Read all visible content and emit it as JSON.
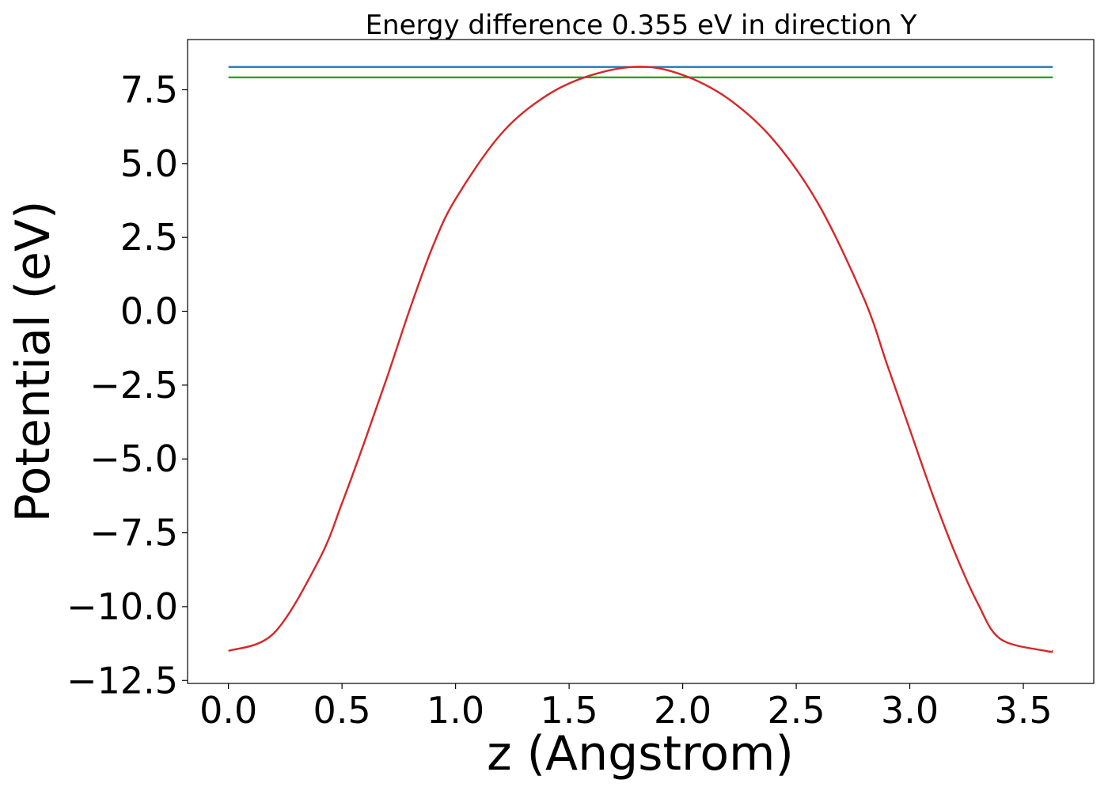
{
  "chart_data": {
    "type": "line",
    "title": "Energy difference 0.355 eV in direction Y",
    "xlabel": "z (Angstrom)",
    "ylabel": "Potential (eV)",
    "xlim": [
      -0.18,
      3.81
    ],
    "ylim": [
      -12.6,
      9.2
    ],
    "xticks": [
      0.0,
      0.5,
      1.0,
      1.5,
      2.0,
      2.5,
      3.0,
      3.5
    ],
    "xtick_labels": [
      "0.0",
      "0.5",
      "1.0",
      "1.5",
      "2.0",
      "2.5",
      "3.0",
      "3.5"
    ],
    "yticks": [
      -12.5,
      -10.0,
      -7.5,
      -5.0,
      -2.5,
      0.0,
      2.5,
      5.0,
      7.5
    ],
    "ytick_labels": [
      "−12.5",
      "−10.0",
      "−7.5",
      "−5.0",
      "−2.5",
      "0.0",
      "2.5",
      "5.0",
      "7.5"
    ],
    "grid": false,
    "series": [
      {
        "color": "#1f77b4",
        "x": [
          0.0,
          3.63
        ],
        "y": [
          8.27,
          8.27
        ]
      },
      {
        "color": "#2ca02c",
        "x": [
          0.0,
          3.63
        ],
        "y": [
          7.92,
          7.92
        ]
      },
      {
        "color": "#d62728",
        "x": [
          0.0,
          0.2,
          0.4,
          0.5,
          0.6,
          0.7,
          0.8,
          0.9,
          1.0,
          1.2,
          1.4,
          1.6,
          1.815,
          2.0,
          2.2,
          2.4,
          2.6,
          2.8,
          2.9,
          3.0,
          3.1,
          3.2,
          3.3,
          3.4,
          3.6,
          3.63
        ],
        "y": [
          -11.5,
          -10.9,
          -8.4,
          -6.5,
          -4.4,
          -2.2,
          0.1,
          2.2,
          3.8,
          6.0,
          7.3,
          8.0,
          8.28,
          8.0,
          7.2,
          5.8,
          3.6,
          0.4,
          -1.8,
          -4.0,
          -6.2,
          -8.2,
          -9.9,
          -11.1,
          -11.5,
          -11.5
        ]
      }
    ]
  }
}
